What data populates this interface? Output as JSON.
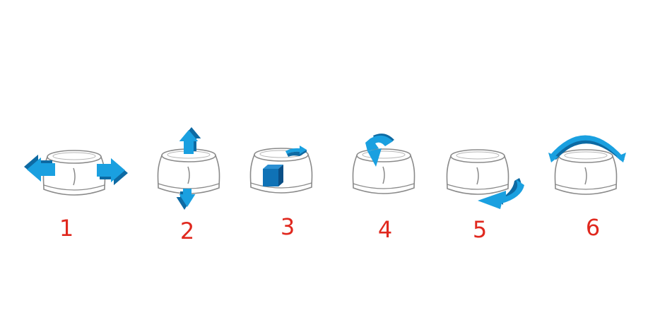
{
  "colors": {
    "arrow_light": "#1aa0e0",
    "arrow_dark": "#0d6aa3",
    "cube_front": "#0f72b6",
    "cube_top": "#2b8fd2",
    "cube_side": "#0a4f86",
    "outline": "#8a8a8a",
    "body_fill": "#ffffff",
    "label": "#e0281e"
  },
  "panels": [
    {
      "number": "1",
      "motion": "pan-left-right",
      "icon": "double-horizontal-arrow-icon"
    },
    {
      "number": "2",
      "motion": "lift-press",
      "icon": "double-vertical-arrow-icon"
    },
    {
      "number": "3",
      "motion": "rotate-object",
      "icon": "cube-icon"
    },
    {
      "number": "4",
      "motion": "tilt-forward",
      "icon": "tilt-arrow-icon"
    },
    {
      "number": "5",
      "motion": "spin",
      "icon": "rotate-arrow-icon"
    },
    {
      "number": "6",
      "motion": "roll",
      "icon": "arc-arrow-icon"
    }
  ]
}
